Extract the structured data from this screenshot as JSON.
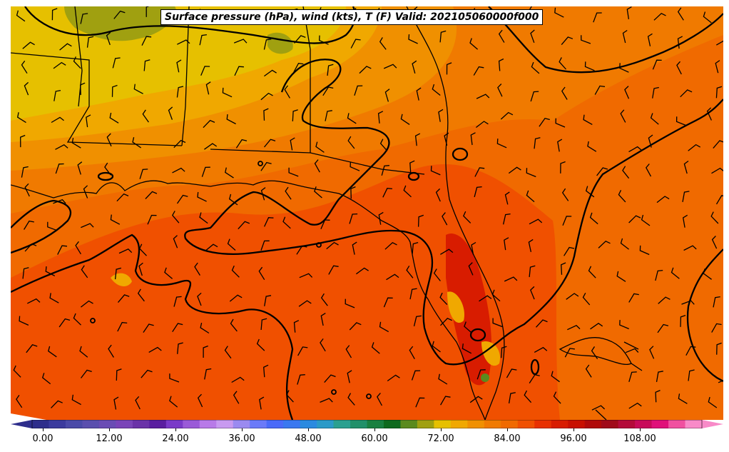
{
  "title": "Surface pressure (hPa), wind (kts), T (F) Valid: 202105060000f000",
  "colorbar": {
    "ticks": [
      "0.00",
      "12.00",
      "24.00",
      "36.00",
      "48.00",
      "60.00",
      "72.00",
      "84.00",
      "96.00",
      "108.00"
    ],
    "colors": [
      "#2e2e8c",
      "#3b3b9e",
      "#4a4aa8",
      "#5a4fae",
      "#6a4cb4",
      "#7a44b8",
      "#6a32a8",
      "#5a1ea0",
      "#7a3ac8",
      "#9a5ad8",
      "#b87ae8",
      "#c89af0",
      "#9a8af0",
      "#6a7af8",
      "#4a6af8",
      "#3a78f0",
      "#2a8ae0",
      "#2a9ac8",
      "#2aa090",
      "#22906a",
      "#1a8040",
      "#0e6a1e",
      "#5a8a1e",
      "#a0a010",
      "#e6c000",
      "#f0a800",
      "#f09000",
      "#f07a00",
      "#f06a00",
      "#f05000",
      "#e83000",
      "#d81c00",
      "#c81000",
      "#b00a0a",
      "#a00a1a",
      "#b40a3a",
      "#c80a5a",
      "#e0107a",
      "#f050a0",
      "#f88ac8"
    ],
    "extend": "both"
  },
  "map": {
    "region": "Southeast US, Gulf of Mexico, Florida",
    "fill_colors": {
      "hot": "#f05000",
      "warm": "#f06a00",
      "mild": "#f07a00",
      "cooler": "#f09000",
      "cool": "#f0a800",
      "cold": "#e6c000",
      "land_cold": "#a0a010",
      "extreme": "#c81000"
    }
  }
}
